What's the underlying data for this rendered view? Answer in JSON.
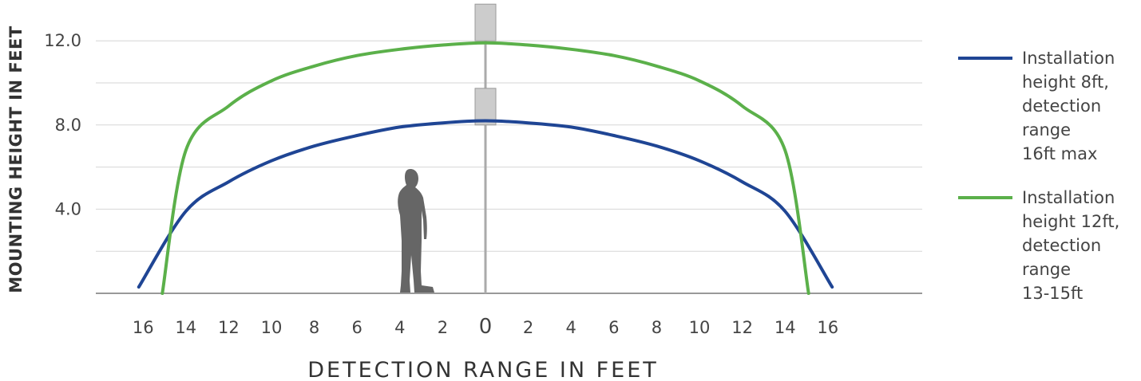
{
  "chart_data": {
    "type": "line",
    "xlabel": "DETECTION RANGE IN FEET",
    "ylabel": "MOUNTING HEIGHT IN FEET",
    "x_ticks": [
      "16",
      "14",
      "12",
      "10",
      "8",
      "6",
      "4",
      "2",
      "0",
      "2",
      "4",
      "6",
      "8",
      "10",
      "12",
      "14",
      "16"
    ],
    "x_tick_values": [
      -16,
      -14,
      -12,
      -10,
      -8,
      -6,
      -4,
      -2,
      0,
      2,
      4,
      6,
      8,
      10,
      12,
      14,
      16
    ],
    "y_ticks": [
      "12.0",
      "8.0",
      "4.0"
    ],
    "y_tick_values": [
      12,
      8,
      4
    ],
    "xlim": [
      -18.3,
      20.5
    ],
    "ylim": [
      0,
      13.2
    ],
    "grid": true,
    "legend_position": "right",
    "series": [
      {
        "name": "Installation height 8ft, detection range 16ft max",
        "name_lines": [
          "Installation",
          "height 8ft,",
          "detection",
          "range",
          "16ft max"
        ],
        "color": "#1f4594",
        "sensor_height": 8,
        "x": [
          -16.2,
          -14,
          -12,
          -10,
          -8,
          -6,
          -4,
          -2,
          0,
          2,
          4,
          6,
          8,
          10,
          12,
          14,
          16.2
        ],
        "y": [
          0.3,
          3.9,
          5.3,
          6.3,
          7.0,
          7.5,
          7.9,
          8.1,
          8.2,
          8.1,
          7.9,
          7.5,
          7.0,
          6.3,
          5.3,
          3.9,
          0.3
        ]
      },
      {
        "name": "Installation height 12ft, detection range 13-15ft",
        "name_lines": [
          "Installation",
          "height 12ft,",
          "detection",
          "range",
          "13-15ft"
        ],
        "color": "#5bb04a",
        "sensor_height": 12,
        "x": [
          -15.1,
          -14,
          -12,
          -10,
          -8,
          -6,
          -4,
          -2,
          0,
          2,
          4,
          6,
          8,
          10,
          12,
          14,
          15.1
        ],
        "y": [
          0.0,
          6.8,
          8.9,
          10.1,
          10.8,
          11.3,
          11.6,
          11.8,
          11.9,
          11.8,
          11.6,
          11.3,
          10.8,
          10.1,
          8.9,
          6.8,
          0.0
        ]
      }
    ]
  }
}
